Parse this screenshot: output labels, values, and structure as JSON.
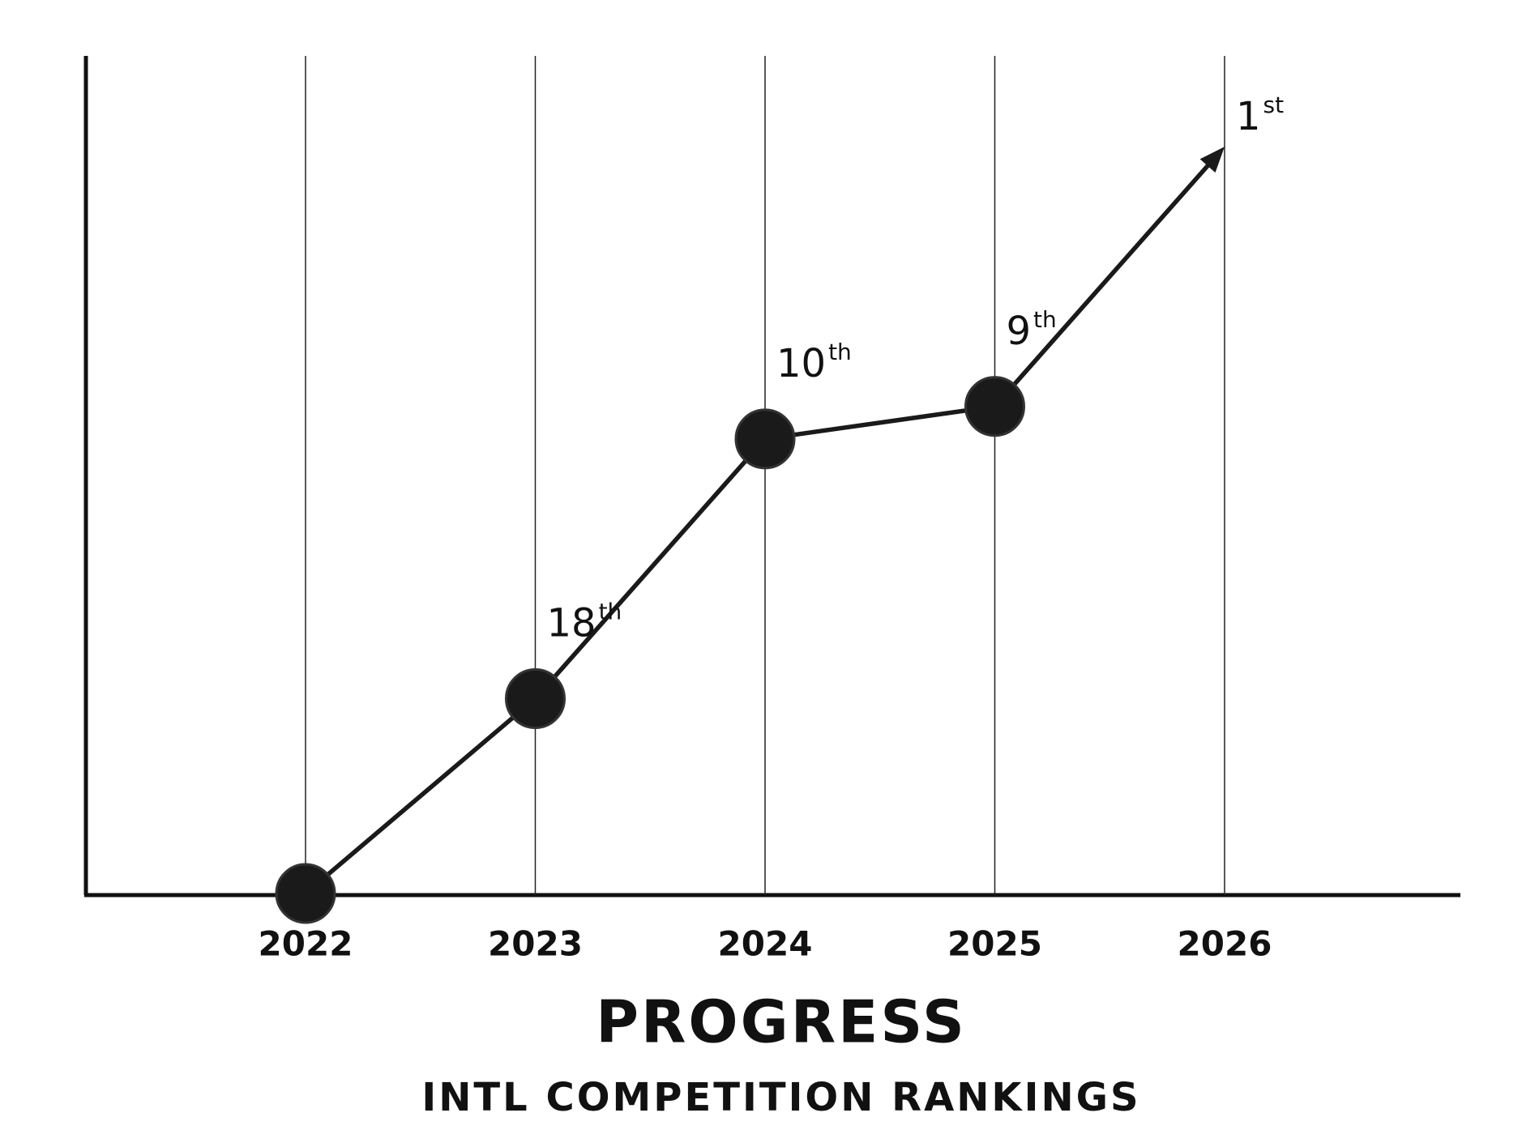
{
  "chart_data": {
    "type": "line",
    "title": "PROGRESS",
    "subtitle": "INTL COMPETITION RANKINGS",
    "categories": [
      "2022",
      "2023",
      "2024",
      "2025",
      "2026"
    ],
    "values": [
      24,
      18,
      10,
      9,
      1
    ],
    "value_labels": [
      null,
      "18th",
      "10th",
      "9th",
      "1st"
    ],
    "color": "#1a1a1a",
    "ylim": [
      24,
      0
    ],
    "end_marker": "arrow",
    "grid": true
  }
}
